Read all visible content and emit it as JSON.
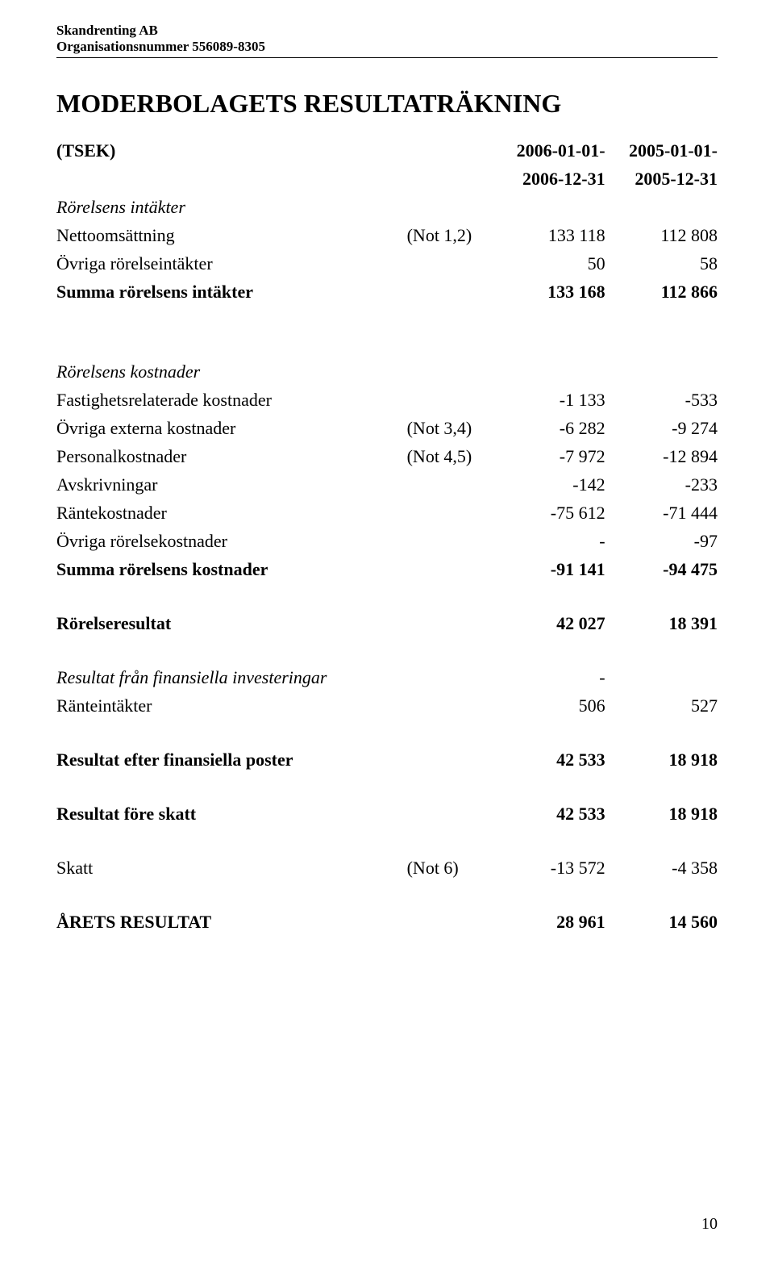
{
  "header": {
    "company": "Skandrenting AB",
    "orgnr": "Organisationsnummer 556089-8305"
  },
  "page_title": "MODERBOLAGETS RESULTATRÄKNING",
  "page_number": "10",
  "col_headers": {
    "tsek": "(TSEK)",
    "period_a_line1": "2006-01-01-",
    "period_a_line2": "2006-12-31",
    "period_b_line1": "2005-01-01-",
    "period_b_line2": "2005-12-31"
  },
  "sections": {
    "intakter": {
      "heading": "Rörelsens intäkter",
      "netto_label": "Nettoomsättning",
      "netto_note": "(Not 1,2)",
      "netto_a": "133 118",
      "netto_b": "112 808",
      "ovriga_label": "Övriga rörelseintäkter",
      "ovriga_a": "50",
      "ovriga_b": "58",
      "sum_label": "Summa rörelsens intäkter",
      "sum_a": "133 168",
      "sum_b": "112 866"
    },
    "kostnader": {
      "heading": "Rörelsens kostnader",
      "fastighet_label": "Fastighetsrelaterade kostnader",
      "fastighet_a": "-1 133",
      "fastighet_b": "-533",
      "externa_label": "Övriga externa kostnader",
      "externa_note": "(Not 3,4)",
      "externa_a": "-6 282",
      "externa_b": "-9 274",
      "personal_label": "Personalkostnader",
      "personal_note": "(Not 4,5)",
      "personal_a": "-7 972",
      "personal_b": "-12 894",
      "avskriv_label": "Avskrivningar",
      "avskriv_a": "-142",
      "avskriv_b": "-233",
      "rantekost_label": "Räntekostnader",
      "rantekost_a": "-75 612",
      "rantekost_b": "-71 444",
      "ovrkost_label": "Övriga rörelsekostnader",
      "ovrkost_a": "-",
      "ovrkost_b": "-97",
      "sum_label": "Summa rörelsens kostnader",
      "sum_a": "-91 141",
      "sum_b": "-94 475"
    },
    "rorelseresultat": {
      "label": "Rörelseresultat",
      "a": "42 027",
      "b": "18 391"
    },
    "finansiella": {
      "heading": "Resultat från finansiella investeringar",
      "dash": "-",
      "ranteint_label": "Ränteintäkter",
      "ranteint_a": "506",
      "ranteint_b": "527",
      "efter_label": "Resultat efter finansiella poster",
      "efter_a": "42 533",
      "efter_b": "18 918",
      "fore_label": "Resultat före skatt",
      "fore_a": "42 533",
      "fore_b": "18 918",
      "skatt_label": "Skatt",
      "skatt_note": "(Not 6)",
      "skatt_a": "-13 572",
      "skatt_b": "-4 358"
    },
    "arets": {
      "label": "ÅRETS RESULTAT",
      "a": "28 961",
      "b": "14 560"
    }
  }
}
